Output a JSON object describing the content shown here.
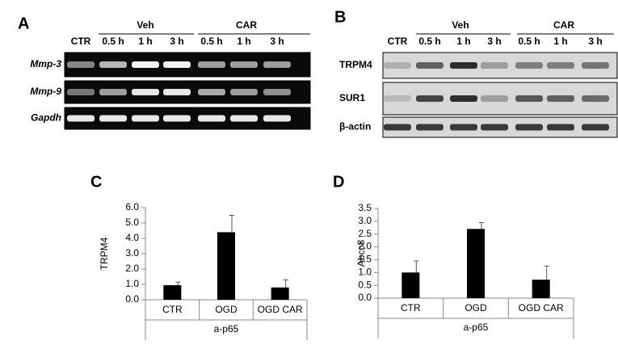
{
  "panel_labels": [
    "A",
    "B",
    "C",
    "D"
  ],
  "gel_a": {
    "groups": [
      "Veh",
      "CAR"
    ],
    "lanes": [
      "CTR",
      "0.5 h",
      "1 h",
      "3 h",
      "0.5 h",
      "1 h",
      "3 h"
    ],
    "rows": [
      "Mmp-3",
      "Mmp-9",
      "Gapdh"
    ]
  },
  "gel_b": {
    "groups": [
      "Veh",
      "CAR"
    ],
    "lanes": [
      "CTR",
      "0.5 h",
      "1 h",
      "3 h",
      "0.5 h",
      "1 h",
      "3 h"
    ],
    "rows": [
      "TRPM4",
      "SUR1",
      "β-actin"
    ]
  },
  "chart_data": [
    {
      "type": "bar",
      "y_label": "TRPM4",
      "x_label": "a-p65",
      "categories": [
        "CTR",
        "OGD",
        "OGD CAR"
      ],
      "values": [
        0.95,
        4.4,
        0.8
      ],
      "errors": [
        0.2,
        1.1,
        0.5
      ],
      "color": "#000000",
      "ylim": [
        0,
        6
      ],
      "yticks": [
        {
          "value": 0,
          "label": "0.0"
        },
        {
          "value": 1,
          "label": "1.0"
        },
        {
          "value": 2,
          "label": "2.0"
        },
        {
          "value": 3,
          "label": "3.0"
        },
        {
          "value": 4,
          "label": "4.0"
        },
        {
          "value": 5,
          "label": "5.0"
        },
        {
          "value": 6,
          "label": "6.0"
        }
      ]
    },
    {
      "type": "bar",
      "y_label": "Abcc8",
      "x_label": "a-p65",
      "categories": [
        "CTR",
        "OGD",
        "OGD CAR"
      ],
      "values": [
        1.0,
        2.7,
        0.72
      ],
      "errors": [
        0.45,
        0.25,
        0.53
      ],
      "color": "#000000",
      "ylim": [
        0,
        3.5
      ],
      "yticks": [
        {
          "value": 0,
          "label": "0.0"
        },
        {
          "value": 0.5,
          "label": "0.5"
        },
        {
          "value": 1,
          "label": "1.0"
        },
        {
          "value": 1.5,
          "label": "1.5"
        },
        {
          "value": 2,
          "label": "2.0"
        },
        {
          "value": 2.5,
          "label": "2.5"
        },
        {
          "value": 3,
          "label": "3.0"
        },
        {
          "value": 3.5,
          "label": "3.5"
        }
      ]
    }
  ]
}
